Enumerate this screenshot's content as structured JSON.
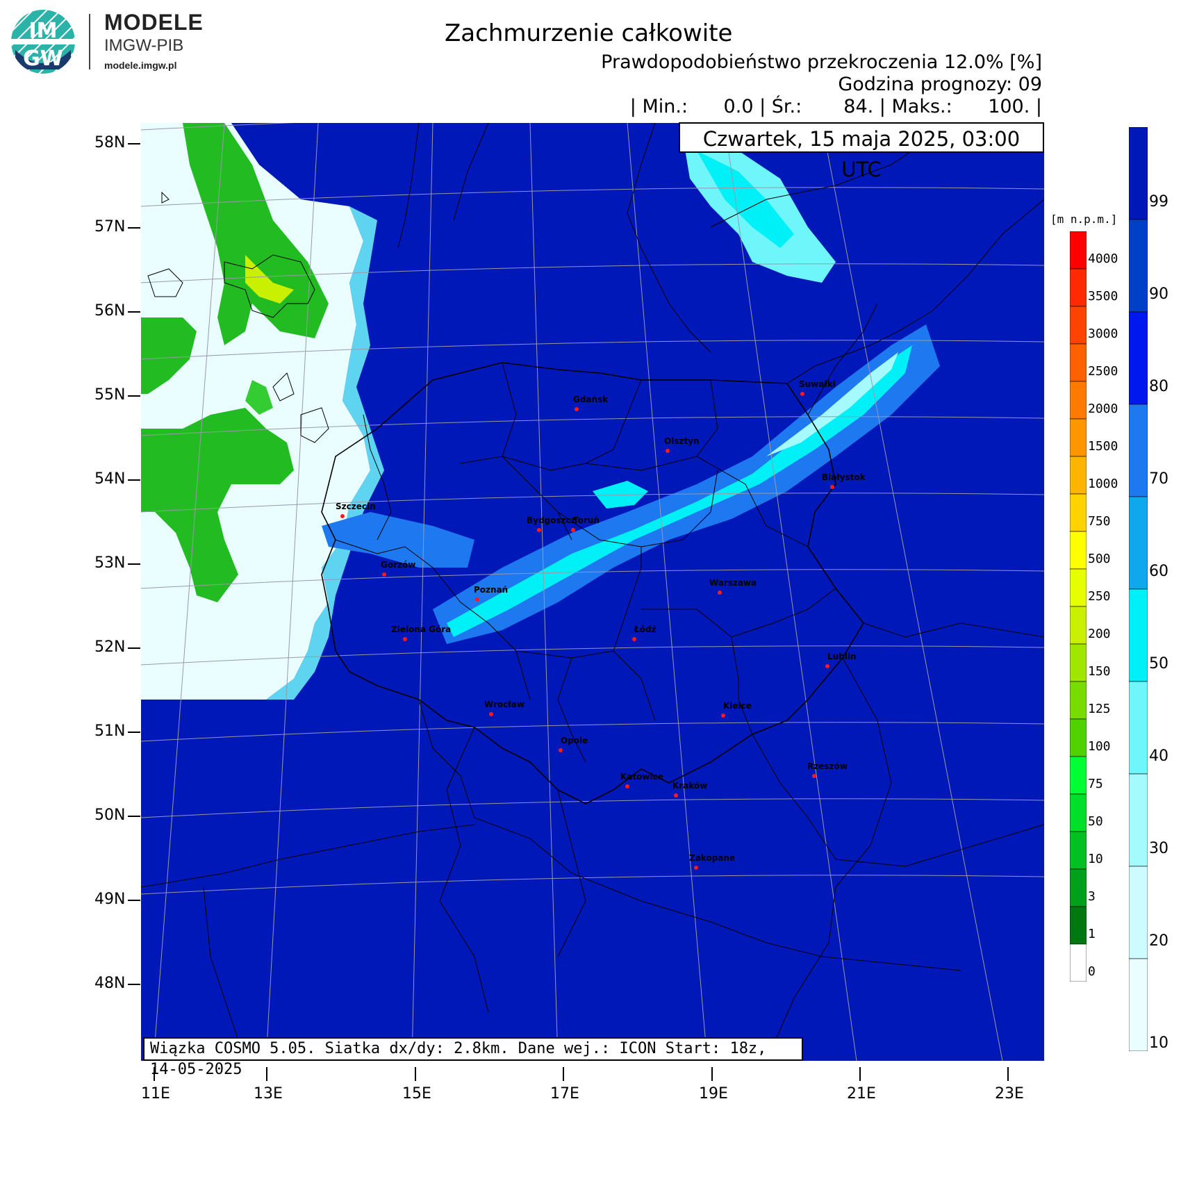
{
  "logo": {
    "badge_top": "IM",
    "badge_bottom": "GW",
    "name": "MODELE",
    "org": "IMGW-PIB",
    "url": "modele.imgw.pl"
  },
  "header": {
    "title": "Zachmurzenie całkowite",
    "subtitle": "Prawdopodobieństwo przekroczenia 12.0% [%]",
    "forecast_hour": "Godzina prognozy: 09",
    "stats": "| Min.:      0.0 | Śr.:       84. | Maks.:      100. |",
    "valid_time": "Czwartek, 15 maja 2025, 03:00 UTC"
  },
  "footer": {
    "model_info": "Wiązka COSMO 5.05. Siatka dx/dy: 2.8km. Dane wej.: ICON Start: 18z, 14-05-2025"
  },
  "latitude_labels": [
    "58N",
    "57N",
    "56N",
    "55N",
    "54N",
    "53N",
    "52N",
    "51N",
    "50N",
    "49N",
    "48N"
  ],
  "longitude_labels": [
    "11E",
    "13E",
    "15E",
    "17E",
    "19E",
    "21E",
    "23E"
  ],
  "cities": [
    {
      "name": "Gdańsk"
    },
    {
      "name": "Suwałki"
    },
    {
      "name": "Olsztyn"
    },
    {
      "name": "Białystok"
    },
    {
      "name": "Szczecin"
    },
    {
      "name": "Bydgoszcz"
    },
    {
      "name": "Toruń"
    },
    {
      "name": "Gorzów"
    },
    {
      "name": "Poznań"
    },
    {
      "name": "Warszawa"
    },
    {
      "name": "Zielona Góra"
    },
    {
      "name": "Łódź"
    },
    {
      "name": "Lublin"
    },
    {
      "name": "Wrocław"
    },
    {
      "name": "Kielce"
    },
    {
      "name": "Opole"
    },
    {
      "name": "Rzeszów"
    },
    {
      "name": "Katowice"
    },
    {
      "name": "Kraków"
    },
    {
      "name": "Zakopane"
    }
  ],
  "elevation_legend": {
    "unit": "[m n.p.m.]",
    "ticks": [
      "4000",
      "3500",
      "3000",
      "2500",
      "2000",
      "1500",
      "1000",
      "750",
      "500",
      "250",
      "200",
      "150",
      "125",
      "100",
      "75",
      "50",
      "10",
      "3",
      "1",
      "0"
    ],
    "colors": [
      "#ff0000",
      "#ff2a00",
      "#ff4400",
      "#ff6000",
      "#ff7a00",
      "#ff9600",
      "#ffb400",
      "#ffd200",
      "#ffff00",
      "#e6ff00",
      "#c8f000",
      "#a0e600",
      "#78dc00",
      "#50d200",
      "#00ff33",
      "#00e02a",
      "#00c022",
      "#00a01a",
      "#007812",
      "#ffffff"
    ]
  },
  "probability_legend": {
    "ticks": [
      "99",
      "90",
      "80",
      "70",
      "60",
      "50",
      "40",
      "30",
      "20",
      "10"
    ],
    "colors": [
      "#0018b8",
      "#0040c8",
      "#0018f0",
      "#1e78f0",
      "#10a8ec",
      "#00f0f8",
      "#6ef6fa",
      "#a4fafc",
      "#cefcfe",
      "#eafeff"
    ]
  },
  "colors": {
    "map_base": "#0018b8",
    "land_green": "#22bb22",
    "light_cloud": "#eafeff",
    "cyan_cloud": "#00f0f8",
    "mid_blue": "#1e78f0"
  }
}
